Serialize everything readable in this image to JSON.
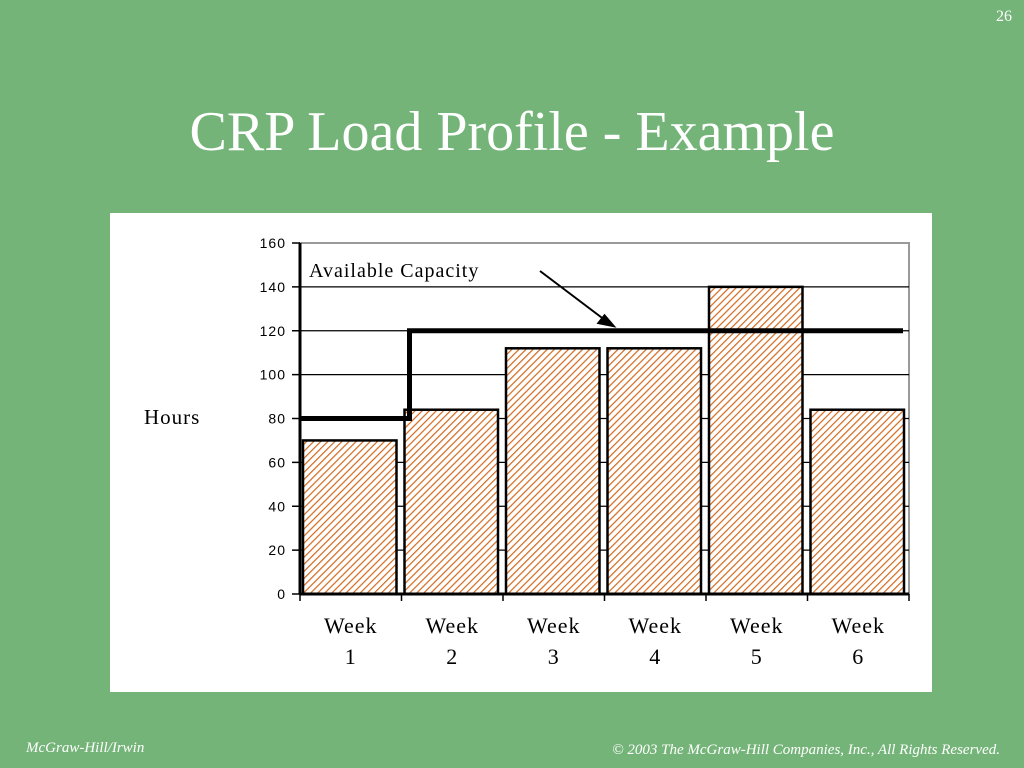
{
  "slide": {
    "number": "26",
    "title": "CRP Load Profile - Example",
    "footer_left": "McGraw-Hill/Irwin",
    "footer_right": "© 2003 The McGraw-Hill Companies, Inc., All Rights Reserved."
  },
  "chart_data": {
    "type": "bar",
    "categories": [
      [
        "Week",
        "1"
      ],
      [
        "Week",
        "2"
      ],
      [
        "Week",
        "3"
      ],
      [
        "Week",
        "4"
      ],
      [
        "Week",
        "5"
      ],
      [
        "Week",
        "6"
      ]
    ],
    "values": [
      70,
      84,
      112,
      112,
      140,
      84
    ],
    "ylabel": "Hours",
    "ylim": [
      0,
      160
    ],
    "yticks": [
      0,
      20,
      40,
      60,
      80,
      100,
      120,
      140,
      160
    ],
    "grid": true,
    "capacity": {
      "label": "Available Capacity",
      "values": [
        80,
        120,
        120,
        120,
        120,
        120
      ]
    },
    "colors": {
      "bar_hatch": "#d2691e",
      "bar_outline": "#000000",
      "capacity_line": "#000000",
      "grid": "#000000"
    }
  }
}
